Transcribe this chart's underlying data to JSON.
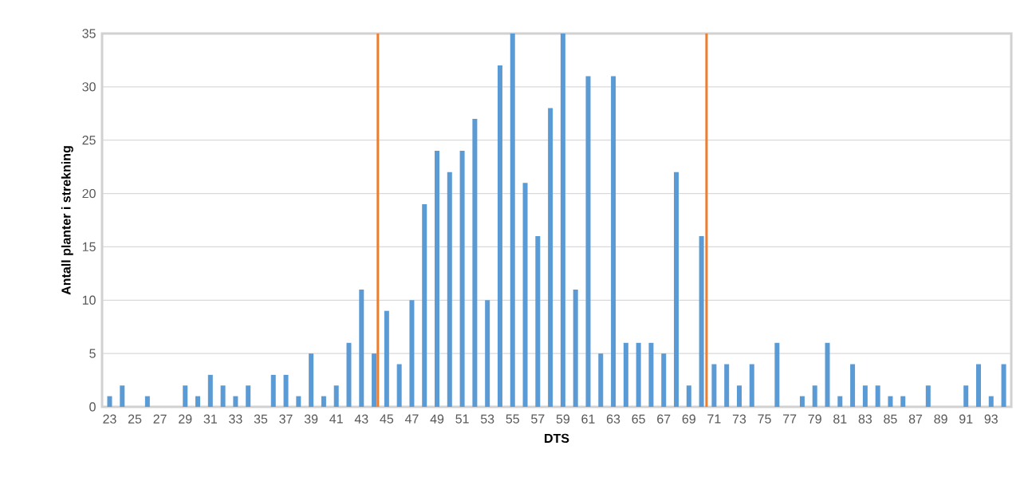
{
  "chart_data": {
    "type": "bar",
    "xlabel": "DTS",
    "ylabel": "Antall planter i strekning",
    "x": [
      23,
      24,
      25,
      26,
      27,
      28,
      29,
      30,
      31,
      32,
      33,
      34,
      35,
      36,
      37,
      38,
      39,
      40,
      41,
      42,
      43,
      44,
      45,
      46,
      47,
      48,
      49,
      50,
      51,
      52,
      53,
      54,
      55,
      56,
      57,
      58,
      59,
      60,
      61,
      62,
      63,
      64,
      65,
      66,
      67,
      68,
      69,
      70,
      71,
      72,
      73,
      74,
      75,
      76,
      77,
      78,
      79,
      80,
      81,
      82,
      83,
      84,
      85,
      86,
      87,
      88,
      89,
      90,
      91,
      92,
      93,
      94
    ],
    "values": [
      1,
      2,
      0,
      1,
      0,
      0,
      2,
      1,
      3,
      2,
      1,
      2,
      0,
      3,
      3,
      1,
      5,
      1,
      2,
      6,
      11,
      5,
      9,
      4,
      10,
      19,
      24,
      22,
      24,
      27,
      10,
      32,
      35,
      21,
      16,
      28,
      35,
      11,
      31,
      5,
      31,
      6,
      6,
      6,
      5,
      22,
      2,
      16,
      4,
      4,
      2,
      4,
      0,
      6,
      0,
      1,
      2,
      6,
      1,
      4,
      2,
      2,
      1,
      1,
      0,
      2,
      0,
      0,
      2,
      4,
      1,
      4
    ],
    "color": "#5b9bd5",
    "xlim": [
      22.4,
      94.6
    ],
    "xticks": [
      23,
      25,
      27,
      29,
      31,
      33,
      35,
      37,
      39,
      41,
      43,
      45,
      47,
      49,
      51,
      53,
      55,
      57,
      59,
      61,
      63,
      65,
      67,
      69,
      71,
      73,
      75,
      77,
      79,
      81,
      83,
      85,
      87,
      89,
      91,
      93
    ],
    "ylim": [
      0,
      35
    ],
    "yticks": [
      0,
      5,
      10,
      15,
      20,
      25,
      30,
      35
    ],
    "grid": "y",
    "ref_lines": [
      {
        "axis": "x",
        "value": 44.3,
        "color": "#ed7d31"
      },
      {
        "axis": "x",
        "value": 70.4,
        "color": "#ed7d31"
      }
    ]
  }
}
